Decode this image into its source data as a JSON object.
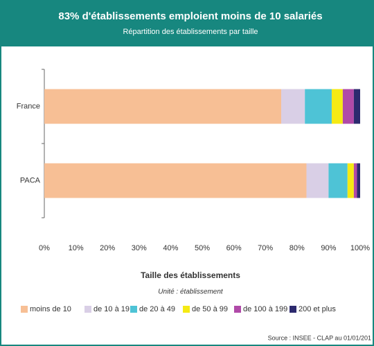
{
  "chart_data": {
    "type": "bar",
    "orientation": "horizontal",
    "stacked": true,
    "title": "83% d'établissements emploient moins de 10 salariés",
    "subtitle": "Répartition des établissements par taille",
    "legend_title": "Taille des établissements",
    "unit_note": "Unité : établissement",
    "source": "Source : INSEE - CLAP au 01/01/201",
    "categories": [
      "France",
      "PACA"
    ],
    "series": [
      {
        "name": "moins de 10",
        "color": "#f7bf95",
        "values": [
          75,
          83
        ]
      },
      {
        "name": "de 10 à 19",
        "color": "#d9cfe6",
        "values": [
          7.5,
          7
        ]
      },
      {
        "name": "de 20 à 49",
        "color": "#4ec3d6",
        "values": [
          8.5,
          6
        ]
      },
      {
        "name": "de 50 à 99",
        "color": "#f5ea14",
        "values": [
          3.5,
          2
        ]
      },
      {
        "name": "de 100 à 199",
        "color": "#b04aa8",
        "values": [
          3.5,
          1
        ]
      },
      {
        "name": "200 et plus",
        "color": "#2c2a6e",
        "values": [
          2,
          1
        ]
      }
    ],
    "xlim": [
      0,
      100
    ],
    "xticks": [
      {
        "value": 0,
        "label": "0%"
      },
      {
        "value": 10,
        "label": "10%"
      },
      {
        "value": 20,
        "label": "20%"
      },
      {
        "value": 30,
        "label": "30%"
      },
      {
        "value": 40,
        "label": "40%"
      },
      {
        "value": 50,
        "label": "50%"
      },
      {
        "value": 60,
        "label": "60%"
      },
      {
        "value": 70,
        "label": "70%"
      },
      {
        "value": 80,
        "label": "80%"
      },
      {
        "value": 90,
        "label": "90%"
      },
      {
        "value": 100,
        "label": "100%"
      }
    ],
    "header_color": "#17877f"
  }
}
